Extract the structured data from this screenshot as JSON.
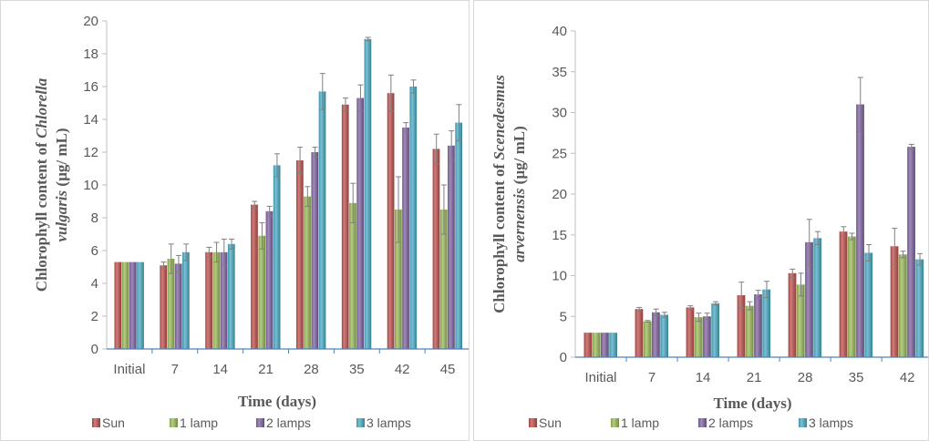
{
  "chart_data": [
    {
      "type": "bar",
      "title": "",
      "ylabel_prefix": "Chlorophyll content of ",
      "ylabel_species_1": "Chlorella",
      "ylabel_species_2": "vulgaris",
      "ylabel_unit": " (µg/ mL)",
      "xlabel": "Time (days)",
      "ylim": [
        0,
        20
      ],
      "yticks": [
        "0",
        "2",
        "4",
        "6",
        "8",
        "10",
        "12",
        "14",
        "16",
        "18",
        "20"
      ],
      "categories": [
        "Initial",
        "7",
        "14",
        "21",
        "28",
        "35",
        "42",
        "45"
      ],
      "legend_position": "bottom",
      "grid": false,
      "series": [
        {
          "name": "Sun",
          "color": "#c0504d",
          "values": [
            5.3,
            5.1,
            5.9,
            8.8,
            11.5,
            14.9,
            15.6,
            12.2
          ],
          "errors": [
            0,
            0.2,
            0.3,
            0.2,
            0.8,
            0.4,
            1.1,
            0.9
          ]
        },
        {
          "name": "1 lamp",
          "color": "#9bbb59",
          "values": [
            5.3,
            5.5,
            5.9,
            6.9,
            9.3,
            8.9,
            8.5,
            8.5
          ],
          "errors": [
            0,
            0.9,
            0.6,
            0.8,
            0.6,
            1.2,
            2.0,
            1.5
          ]
        },
        {
          "name": "2 lamps",
          "color": "#8064a2",
          "values": [
            5.3,
            5.2,
            5.9,
            8.4,
            12.0,
            15.3,
            13.5,
            12.4
          ],
          "errors": [
            0,
            0.5,
            0.8,
            0.3,
            0.3,
            0.8,
            0.3,
            0.9
          ]
        },
        {
          "name": "3 lamps",
          "color": "#4bacc6",
          "values": [
            5.3,
            5.9,
            6.4,
            11.2,
            15.7,
            18.9,
            16.0,
            13.8
          ],
          "errors": [
            0,
            0.5,
            0.3,
            0.7,
            1.1,
            0.1,
            0.4,
            1.1
          ]
        }
      ]
    },
    {
      "type": "bar",
      "title": "",
      "ylabel_prefix": "Chlorophyll content of ",
      "ylabel_species_1": "Scenedesmus",
      "ylabel_species_2": "arvernensis",
      "ylabel_unit": " (µg/ mL)",
      "xlabel": "Time (days)",
      "ylim": [
        0,
        40
      ],
      "yticks": [
        "0",
        "5",
        "10",
        "15",
        "20",
        "25",
        "30",
        "35",
        "40"
      ],
      "categories": [
        "Initial",
        "7",
        "14",
        "21",
        "28",
        "35",
        "42"
      ],
      "legend_position": "bottom",
      "grid": false,
      "series": [
        {
          "name": "Sun",
          "color": "#c0504d",
          "values": [
            3.0,
            5.9,
            6.1,
            7.6,
            10.3,
            15.4,
            13.6
          ],
          "errors": [
            0,
            0.2,
            0.2,
            1.6,
            0.5,
            0.6,
            2.2
          ]
        },
        {
          "name": "1 lamp",
          "color": "#9bbb59",
          "values": [
            3.0,
            4.4,
            4.9,
            6.3,
            8.9,
            14.8,
            12.6
          ],
          "errors": [
            0,
            0.1,
            0.5,
            0.5,
            1.4,
            0.4,
            0.4
          ]
        },
        {
          "name": "2 lamps",
          "color": "#8064a2",
          "values": [
            3.0,
            5.5,
            5.0,
            7.7,
            14.1,
            31.0,
            25.8
          ],
          "errors": [
            0,
            0.4,
            0.4,
            0.5,
            2.8,
            3.3,
            0.3
          ]
        },
        {
          "name": "3 lamps",
          "color": "#4bacc6",
          "values": [
            3.0,
            5.2,
            6.6,
            8.3,
            14.6,
            12.8,
            12.0
          ],
          "errors": [
            0,
            0.3,
            0.2,
            1.0,
            0.8,
            1.0,
            0.7
          ]
        }
      ]
    }
  ]
}
